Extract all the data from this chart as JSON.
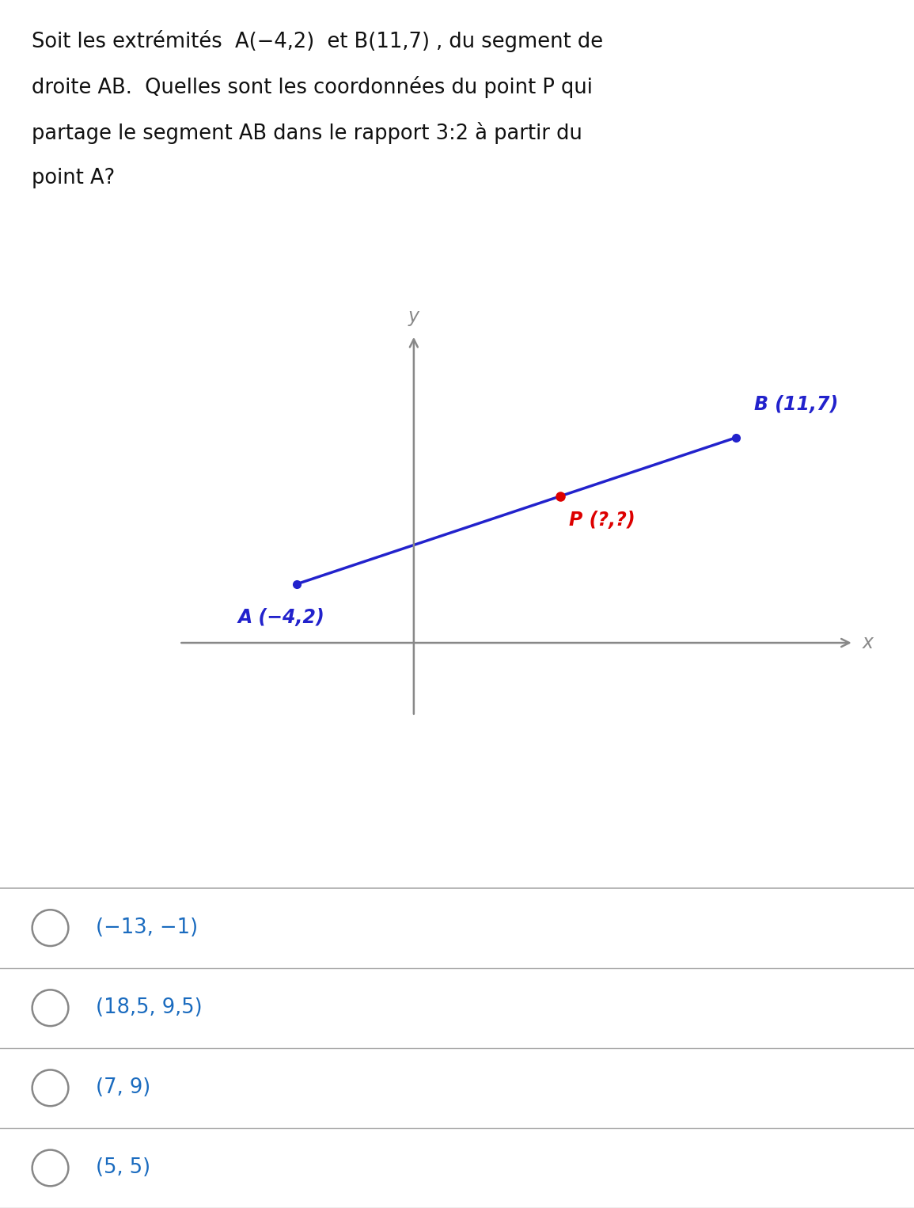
{
  "question_line1": "Soit les extrémités  A(−4,2)  et B(11,7) , du segment de",
  "question_line2": "droite AB.  Quelles sont les coordonnées du point P qui",
  "question_line3": "partage le segment AB dans le rapport 3:2 à partir du",
  "question_line4": "point A?",
  "A": [
    -4,
    2
  ],
  "B": [
    11,
    7
  ],
  "P": [
    5,
    5
  ],
  "P_label": "P (?,?)",
  "A_label": "A (−4,2)",
  "B_label": "B (11,7)",
  "line_color": "#2222cc",
  "point_color": "#2222cc",
  "P_color": "#dd0000",
  "axis_color": "#888888",
  "label_color": "#2222cc",
  "question_color": "#111111",
  "choice_color": "#1a6bbf",
  "circle_color": "#888888",
  "choices": [
    "(−13, −1)",
    "(18,5, 9,5)",
    "(7, 9)",
    "(5, 5)"
  ],
  "background_color": "#ffffff",
  "fig_width": 11.55,
  "fig_height": 15.26
}
